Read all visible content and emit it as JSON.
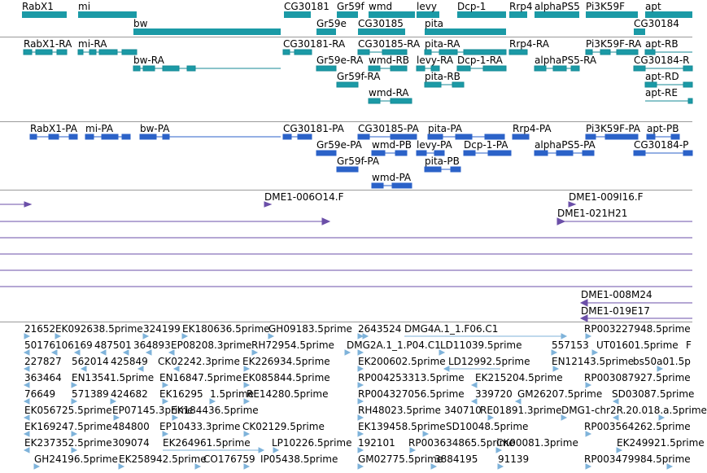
{
  "colors": {
    "gene": "#1b9aa6",
    "gene_dark": "#168a95",
    "cdna": "#2b62c8",
    "clone": "#6b4fa8",
    "est": "#7fb3da",
    "separator": "#9a9a9a"
  },
  "gene_track": {
    "labels": [
      "RabX1",
      "mi",
      "CG30181",
      "Gr59f",
      "wmd",
      "levy",
      "Dcp-1",
      "Rrp4",
      "alphaPS5",
      "Pi3K59F",
      "apt",
      "bw",
      "Gr59e",
      "CG30185",
      "pita",
      "CG30184"
    ]
  },
  "transcript_track": {
    "labels": [
      "RabX1-RA",
      "mi-RA",
      "CG30181-RA",
      "CG30185-RA",
      "pita-RA",
      "Rrp4-RA",
      "Pi3K59F-RA",
      "apt-RB",
      "bw-RA",
      "Gr59e-RA",
      "wmd-RB",
      "levy-RA",
      "Dcp-1-RA",
      "alphaPS5-RA",
      "CG30184-R",
      "Gr59f-RA",
      "pita-RB",
      "apt-RD",
      "wmd-RA",
      "apt-RE"
    ]
  },
  "cdna_track": {
    "labels": [
      "RabX1-PA",
      "mi-PA",
      "bw-PA",
      "CG30181-PA",
      "CG30185-PA",
      "pita-PA",
      "Rrp4-PA",
      "Pi3K59F-PA",
      "apt-PB",
      "Gr59e-PA",
      "wmd-PB",
      "levy-PA",
      "Dcp-1-PA",
      "alphaPS5-PA",
      "CG30184-P",
      "Gr59f-PA",
      "pita-PB",
      "wmd-PA"
    ]
  },
  "clone_track": {
    "labels": [
      "DME1-006O14.F",
      "DME1-009I16.F",
      "DME1-021H21",
      "DME1-008M24",
      "DME1-019E17"
    ]
  },
  "est_track": {
    "labels": [
      "21652",
      "EK092638.5prime",
      "324199",
      "EK180636.5prime",
      "GH09183.5prime",
      "2643524",
      "DMG4A.1_1.F06.C1",
      "RP003227948.5prime",
      "50176",
      "106169",
      "487501",
      "364893",
      "EP08208.3prime",
      "RH72954.5prime",
      "DMG2A.1_1.P04.C1",
      "LD11039.5prime",
      "557153",
      "UT01601.5prime",
      "F",
      "227827",
      "562014",
      "425849",
      "CK02242.3prime",
      "EK226934.5prime",
      "EK200602.5prime",
      "LD12992.5prime",
      "EN12143.5prime",
      "bs50a01.5p",
      "363464",
      "EN13541.5prime",
      "EN16847.5prime",
      "EK085844.5prime",
      "RP004253313.5prime",
      "EK215204.5prime",
      "RP003087927.5prime",
      "76649",
      "571389",
      "424682",
      "EK16295",
      "1.5prime",
      "RE14280.5prime",
      "RP004327056.5prime",
      "339720",
      "GM26207.5prime",
      "SD03087.5prime",
      "EK056725.5prime",
      "EP07145.3prime",
      "EK184436.5prime",
      "RH48023.5prime",
      "340710",
      "RE01891.3prime",
      "DMG1-chr2R.20.018.a.5prime",
      "EK169247.5prime",
      "484800",
      "EP10433.3prime",
      "CK02129.5prime",
      "EK139458.5prime",
      "SD10048.5prime",
      "RP003564262.5prime",
      "EK237352.5prime",
      "309074",
      "EK264961.5prime",
      "LP10226.5prime",
      "192101",
      "RP003634865.5prime",
      "CK00081.3prime",
      "EK249921.5prime",
      "GH24196.5prime",
      "EK258942.5prime",
      "CO176759",
      "IP05438.5prime",
      "GM02775.5prime",
      "3884195",
      "91139",
      "RP003479984.5prime"
    ]
  }
}
